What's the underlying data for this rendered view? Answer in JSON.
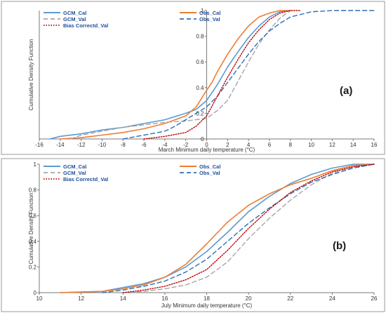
{
  "chart_data": [
    {
      "type": "line",
      "panel_label": "(a)",
      "xlabel": "March Minimum daily temperature (°C)",
      "ylabel": "Cumulative Density Function",
      "xlim": [
        -16,
        16
      ],
      "ylim": [
        0,
        1
      ],
      "x_ticks": [
        -16,
        -14,
        -12,
        -10,
        -8,
        -6,
        -4,
        -2,
        0,
        2,
        4,
        6,
        8,
        10,
        12,
        14,
        16
      ],
      "y_ticks": [
        0,
        0.2,
        0.4,
        0.6,
        0.8,
        1
      ],
      "y_tick_labels": [
        "0",
        "0.2",
        "0.4",
        "0.6",
        "0.8",
        "1"
      ],
      "legend_position": "top-left",
      "grid": false,
      "series": [
        {
          "name": "GCM_Cal",
          "color": "#5b9bd5",
          "style": "solid",
          "x": [
            -15,
            -14,
            -12,
            -10,
            -8,
            -6,
            -4,
            -2,
            -1,
            0,
            1,
            2,
            3,
            4,
            5,
            6,
            7,
            8
          ],
          "y": [
            0,
            0.02,
            0.04,
            0.07,
            0.09,
            0.12,
            0.15,
            0.2,
            0.23,
            0.3,
            0.42,
            0.56,
            0.68,
            0.79,
            0.88,
            0.95,
            0.99,
            1.0
          ]
        },
        {
          "name": "Obs_Cal",
          "color": "#ed7d31",
          "style": "solid",
          "x": [
            -14,
            -12,
            -10,
            -8,
            -6,
            -4,
            -2,
            -1,
            0,
            0.5,
            1,
            2,
            3,
            4,
            5,
            6,
            7,
            8
          ],
          "y": [
            0,
            0.01,
            0.03,
            0.05,
            0.08,
            0.12,
            0.18,
            0.25,
            0.38,
            0.44,
            0.52,
            0.66,
            0.78,
            0.88,
            0.95,
            0.98,
            1.0,
            1.0
          ]
        },
        {
          "name": "GCM_Val",
          "color": "#a5a5a5",
          "style": "dashed",
          "x": [
            -13,
            -12,
            -10,
            -8,
            -6,
            -4,
            -2,
            0,
            1,
            2,
            3,
            4,
            5,
            6,
            7,
            8
          ],
          "y": [
            0,
            0.03,
            0.06,
            0.09,
            0.11,
            0.13,
            0.14,
            0.16,
            0.22,
            0.3,
            0.45,
            0.6,
            0.74,
            0.85,
            0.94,
            1.0
          ]
        },
        {
          "name": "Obs_Val",
          "color": "#2e6fb7",
          "style": "dashed",
          "x": [
            -8,
            -6,
            -4,
            -3,
            -2,
            -1,
            0,
            1,
            2,
            3,
            4,
            5,
            6,
            7,
            8,
            10,
            12,
            14,
            16
          ],
          "y": [
            0,
            0.03,
            0.06,
            0.1,
            0.15,
            0.2,
            0.25,
            0.33,
            0.44,
            0.55,
            0.66,
            0.76,
            0.84,
            0.9,
            0.95,
            0.99,
            1.0,
            1.0,
            1.0
          ]
        },
        {
          "name": "Bias Correctd_Val",
          "color": "#c00000",
          "style": "dotted",
          "x": [
            -6,
            -4,
            -2,
            -1,
            0,
            1,
            2,
            3,
            4,
            5,
            6,
            7,
            8,
            9
          ],
          "y": [
            0,
            0.02,
            0.05,
            0.1,
            0.18,
            0.33,
            0.48,
            0.62,
            0.75,
            0.85,
            0.93,
            0.98,
            1.0,
            1.0
          ]
        }
      ]
    },
    {
      "type": "line",
      "panel_label": "(b)",
      "xlabel": "July Minimum daily temperature (°C)",
      "ylabel": "Cumulative Density Function",
      "xlim": [
        10,
        26
      ],
      "ylim": [
        0,
        1
      ],
      "x_ticks": [
        10,
        12,
        14,
        16,
        18,
        20,
        22,
        24,
        26
      ],
      "y_ticks": [
        0,
        0.2,
        0.4,
        0.6,
        0.8,
        1
      ],
      "y_tick_labels": [
        "0",
        "0.2",
        "0.4",
        "0.6",
        "0.8",
        "1"
      ],
      "legend_position": "top-left",
      "grid": false,
      "series": [
        {
          "name": "GCM_Cal",
          "color": "#5b9bd5",
          "style": "solid",
          "x": [
            11,
            13,
            14,
            15,
            16,
            17,
            18,
            19,
            20,
            21,
            22,
            23,
            24,
            25,
            26
          ],
          "y": [
            0,
            0.01,
            0.04,
            0.07,
            0.12,
            0.2,
            0.32,
            0.47,
            0.63,
            0.75,
            0.85,
            0.92,
            0.97,
            1.0,
            1.0
          ]
        },
        {
          "name": "Obs_Cal",
          "color": "#ed7d31",
          "style": "solid",
          "x": [
            11,
            13,
            14,
            15,
            16,
            17,
            18,
            19,
            20,
            21,
            22,
            23,
            24,
            25,
            26
          ],
          "y": [
            0,
            0.01,
            0.03,
            0.06,
            0.12,
            0.22,
            0.38,
            0.55,
            0.68,
            0.77,
            0.84,
            0.89,
            0.95,
            0.99,
            1.0
          ]
        },
        {
          "name": "GCM_Val",
          "color": "#a5a5a5",
          "style": "dashed",
          "x": [
            14,
            15,
            16,
            17,
            18,
            19,
            20,
            21,
            22,
            23,
            24,
            25,
            26
          ],
          "y": [
            0,
            0.01,
            0.03,
            0.06,
            0.12,
            0.24,
            0.42,
            0.58,
            0.72,
            0.84,
            0.93,
            0.98,
            1.0
          ]
        },
        {
          "name": "Obs_Val",
          "color": "#2e6fb7",
          "style": "dashed",
          "x": [
            13,
            14,
            15,
            16,
            17,
            18,
            19,
            20,
            21,
            22,
            23,
            24,
            25,
            26
          ],
          "y": [
            0,
            0.02,
            0.05,
            0.09,
            0.16,
            0.26,
            0.4,
            0.54,
            0.66,
            0.77,
            0.86,
            0.92,
            0.97,
            1.0
          ]
        },
        {
          "name": "Bias Correctd_Val",
          "color": "#c00000",
          "style": "dotted",
          "x": [
            14,
            15,
            16,
            17,
            18,
            19,
            20,
            21,
            22,
            23,
            24,
            25,
            26
          ],
          "y": [
            0,
            0.02,
            0.05,
            0.1,
            0.18,
            0.33,
            0.5,
            0.65,
            0.78,
            0.87,
            0.94,
            0.98,
            1.0
          ]
        }
      ]
    }
  ]
}
